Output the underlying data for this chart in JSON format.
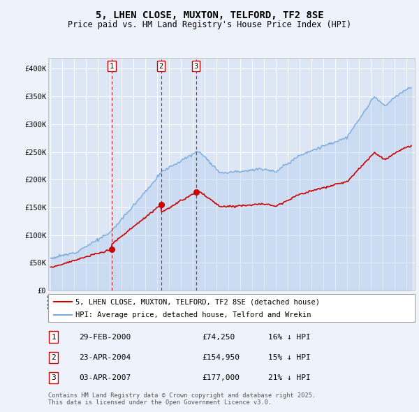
{
  "title": "5, LHEN CLOSE, MUXTON, TELFORD, TF2 8SE",
  "subtitle": "Price paid vs. HM Land Registry's House Price Index (HPI)",
  "bg_color": "#eef2fa",
  "plot_bg_color": "#dde6f5",
  "grid_color": "#ffffff",
  "sale_prices": [
    74250,
    154950,
    177000
  ],
  "sale_labels": [
    "1",
    "2",
    "3"
  ],
  "sale_pcts": [
    "16%",
    "15%",
    "21%"
  ],
  "sale_label_dates": [
    "29-FEB-2000",
    "23-APR-2004",
    "03-APR-2007"
  ],
  "legend_line1": "5, LHEN CLOSE, MUXTON, TELFORD, TF2 8SE (detached house)",
  "legend_line2": "HPI: Average price, detached house, Telford and Wrekin",
  "footnote": "Contains HM Land Registry data © Crown copyright and database right 2025.\nThis data is licensed under the Open Government Licence v3.0.",
  "hpi_color": "#7aaadd",
  "hpi_fill_color": "#aaccee",
  "sale_color": "#cc0000",
  "sale_vline_color": "#cc0000",
  "ylim": [
    0,
    420000
  ],
  "yticks": [
    0,
    50000,
    100000,
    150000,
    200000,
    250000,
    300000,
    350000,
    400000
  ],
  "ytick_labels": [
    "£0",
    "£50K",
    "£100K",
    "£150K",
    "£200K",
    "£250K",
    "£300K",
    "£350K",
    "£400K"
  ],
  "sale_year_decimals": [
    2000.16,
    2004.31,
    2007.25
  ]
}
